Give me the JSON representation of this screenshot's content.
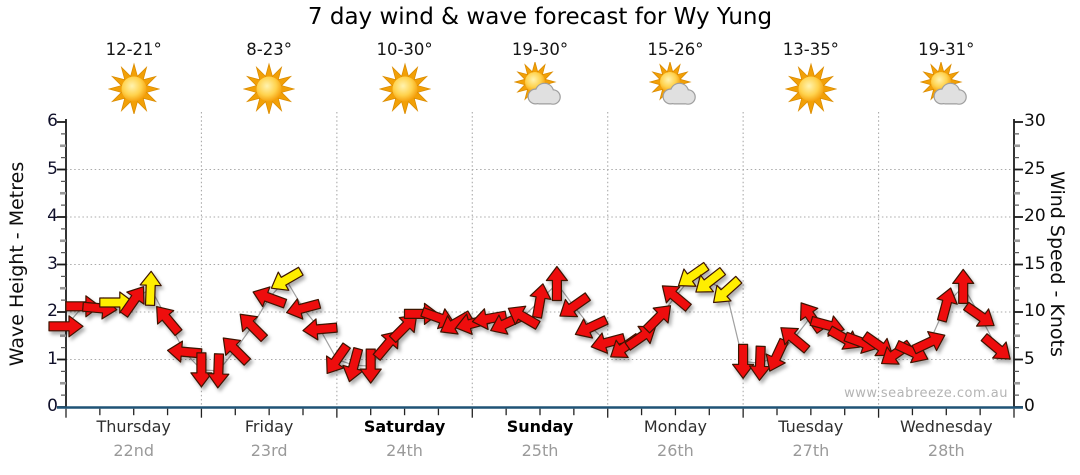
{
  "title": "7 day wind & wave forecast for Wy Yung",
  "watermark": "www.seabreeze.com.au",
  "colors": {
    "arrow_red": "#ee1111",
    "arrow_yellow": "#ffee00",
    "arrow_outline": "#3d1200",
    "axis_blue": "#1f5376",
    "axis_black": "#1c1c1c",
    "grid_gray": "#aaaaaa",
    "connector_gray": "#8f8f8f",
    "sun_ray": "#f2a007",
    "cloud_gray": "#e0e0e0"
  },
  "days": [
    {
      "name": "Thursday",
      "date": "22nd",
      "temp": "12-21°",
      "icon": "sunny",
      "bold": false
    },
    {
      "name": "Friday",
      "date": "23rd",
      "temp": "8-23°",
      "icon": "sunny",
      "bold": false
    },
    {
      "name": "Saturday",
      "date": "24th",
      "temp": "10-30°",
      "icon": "sunny",
      "bold": true
    },
    {
      "name": "Sunday",
      "date": "25th",
      "temp": "19-30°",
      "icon": "partly-cloudy",
      "bold": true
    },
    {
      "name": "Monday",
      "date": "26th",
      "temp": "15-26°",
      "icon": "partly-cloudy",
      "bold": false
    },
    {
      "name": "Tuesday",
      "date": "27th",
      "temp": "13-35°",
      "icon": "sunny",
      "bold": false
    },
    {
      "name": "Wednesday",
      "date": "28th",
      "temp": "19-31°",
      "icon": "partly-cloudy",
      "bold": false
    }
  ],
  "chart_data": {
    "type": "wind-arrows",
    "left_axis": {
      "label": "Wave Height - Metres",
      "min": 0,
      "max": 6,
      "ticks": [
        0,
        1,
        2,
        3,
        4,
        5,
        6
      ]
    },
    "right_axis": {
      "label": "Wind Speed - Knots",
      "min": 0,
      "max": 30,
      "ticks": [
        0,
        5,
        10,
        15,
        20,
        25,
        30
      ]
    },
    "x_axis": {
      "span_hours": 168,
      "tick_every_hours": 6,
      "categories": [
        "Thursday",
        "Friday",
        "Saturday",
        "Sunday",
        "Monday",
        "Tuesday",
        "Wednesday"
      ]
    },
    "grid": {
      "horizontal_metres": [
        1,
        2,
        3,
        4,
        5
      ],
      "vertical_day_boundaries": true
    },
    "points_format": "[hour_offset, wind_speed_knots, direction_deg_ccw_from_east, color r=red y=yellow]",
    "points": [
      [
        0,
        8.5,
        0,
        "r"
      ],
      [
        3,
        10.6,
        0,
        "r"
      ],
      [
        6,
        10.4,
        355,
        "r"
      ],
      [
        9,
        11.0,
        0,
        "y"
      ],
      [
        12,
        11.2,
        55,
        "r"
      ],
      [
        15,
        12.5,
        88,
        "y"
      ],
      [
        18,
        9.2,
        130,
        "r"
      ],
      [
        21,
        5.8,
        175,
        "r"
      ],
      [
        24,
        3.9,
        270,
        "r"
      ],
      [
        27,
        3.8,
        268,
        "r"
      ],
      [
        30,
        6.0,
        135,
        "r"
      ],
      [
        33,
        8.5,
        135,
        "r"
      ],
      [
        36,
        11.5,
        160,
        "r"
      ],
      [
        39,
        13.4,
        210,
        "y"
      ],
      [
        42,
        10.4,
        195,
        "r"
      ],
      [
        45,
        8.2,
        185,
        "r"
      ],
      [
        48,
        5.0,
        235,
        "r"
      ],
      [
        51,
        4.4,
        255,
        "r"
      ],
      [
        54,
        4.3,
        270,
        "r"
      ],
      [
        57,
        6.6,
        50,
        "r"
      ],
      [
        60,
        8.4,
        45,
        "r"
      ],
      [
        63,
        9.8,
        0,
        "r"
      ],
      [
        66,
        9.4,
        340,
        "r"
      ],
      [
        69,
        8.8,
        210,
        "r"
      ],
      [
        72,
        8.8,
        195,
        "r"
      ],
      [
        75,
        9.3,
        190,
        "r"
      ],
      [
        78,
        8.8,
        205,
        "r"
      ],
      [
        81,
        9.5,
        150,
        "r"
      ],
      [
        84,
        11.2,
        80,
        "r"
      ],
      [
        87,
        13.0,
        90,
        "r"
      ],
      [
        90,
        10.6,
        215,
        "r"
      ],
      [
        93,
        8.4,
        205,
        "r"
      ],
      [
        96,
        6.8,
        195,
        "r"
      ],
      [
        99,
        6.3,
        215,
        "r"
      ],
      [
        102,
        7.4,
        35,
        "r"
      ],
      [
        105,
        9.4,
        45,
        "r"
      ],
      [
        108,
        11.6,
        140,
        "r"
      ],
      [
        111,
        13.8,
        215,
        "y"
      ],
      [
        114,
        13.2,
        218,
        "y"
      ],
      [
        117,
        12.2,
        222,
        "y"
      ],
      [
        120,
        4.8,
        270,
        "r"
      ],
      [
        123,
        4.6,
        268,
        "r"
      ],
      [
        126,
        5.4,
        245,
        "r"
      ],
      [
        129,
        7.2,
        140,
        "r"
      ],
      [
        132,
        9.5,
        125,
        "r"
      ],
      [
        135,
        8.6,
        345,
        "r"
      ],
      [
        138,
        7.2,
        330,
        "r"
      ],
      [
        141,
        6.8,
        340,
        "r"
      ],
      [
        144,
        6.5,
        325,
        "r"
      ],
      [
        147,
        5.6,
        215,
        "r"
      ],
      [
        150,
        5.8,
        335,
        "r"
      ],
      [
        153,
        6.8,
        25,
        "r"
      ],
      [
        156,
        10.8,
        75,
        "r"
      ],
      [
        159,
        12.7,
        90,
        "r"
      ],
      [
        162,
        9.6,
        325,
        "r"
      ],
      [
        165,
        6.2,
        320,
        "r"
      ]
    ]
  }
}
